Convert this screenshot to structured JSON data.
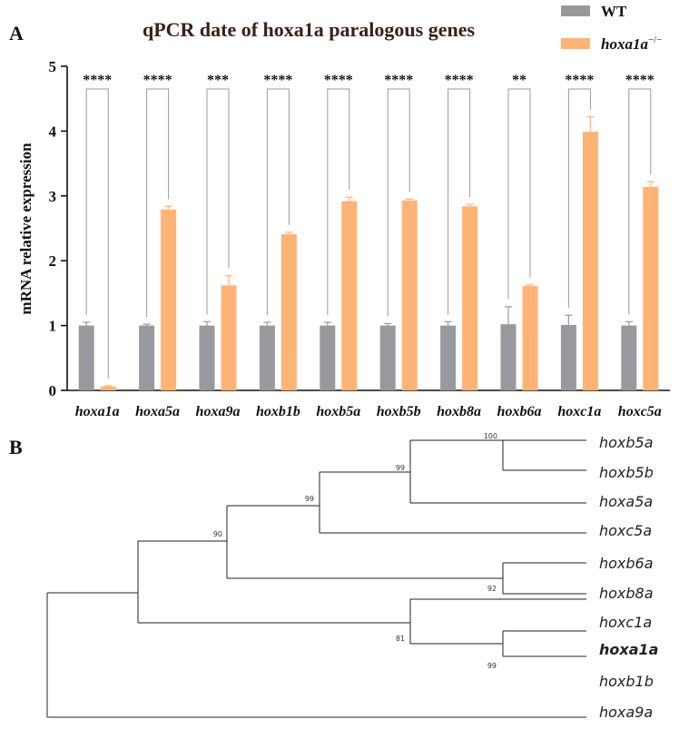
{
  "panel_a_label": "A",
  "panel_b_label": "B",
  "legend": [
    {
      "label": "WT",
      "italic": false,
      "color": "#98999e"
    },
    {
      "label": "hoxa1a",
      "sup": "−/−",
      "italic": true,
      "color": "#ffb375"
    }
  ],
  "chart_data": {
    "type": "bar",
    "title": "qPCR date of hoxa1a paralogous genes",
    "xlabel": "",
    "ylabel": "mRNA relative expression",
    "ylim": [
      0,
      5
    ],
    "yticks": [
      0,
      1,
      2,
      3,
      4,
      5
    ],
    "categories": [
      "hoxa1a",
      "hoxa5a",
      "hoxa9a",
      "hoxb1b",
      "hoxb5a",
      "hoxb5b",
      "hoxb8a",
      "hoxb6a",
      "hoxc1a",
      "hoxc5a"
    ],
    "series": [
      {
        "name": "WT",
        "color": "#98999e",
        "values": [
          1.0,
          1.0,
          1.0,
          1.0,
          1.0,
          1.0,
          1.0,
          1.02,
          1.01,
          1.0
        ],
        "errors": [
          0.05,
          0.02,
          0.06,
          0.05,
          0.05,
          0.03,
          0.06,
          0.27,
          0.15,
          0.06
        ]
      },
      {
        "name": "hoxa1a−/−",
        "color": "#ffb375",
        "values": [
          0.06,
          2.79,
          1.62,
          2.41,
          2.92,
          2.93,
          2.84,
          1.61,
          3.99,
          3.14
        ],
        "errors": [
          0.01,
          0.05,
          0.15,
          0.03,
          0.06,
          0.02,
          0.03,
          0.02,
          0.23,
          0.08
        ]
      }
    ],
    "significance": [
      "****",
      "****",
      "***",
      "****",
      "****",
      "****",
      "****",
      "**",
      "****",
      "****"
    ],
    "grid": false,
    "legend_position": "top-right"
  },
  "tree": {
    "leaves": [
      {
        "name": "hoxb5a",
        "bold": false
      },
      {
        "name": "hoxb5b",
        "bold": false
      },
      {
        "name": "hoxa5a",
        "bold": false
      },
      {
        "name": "hoxc5a",
        "bold": false
      },
      {
        "name": "hoxb6a",
        "bold": false
      },
      {
        "name": "hoxb8a",
        "bold": false
      },
      {
        "name": "hoxc1a",
        "bold": false
      },
      {
        "name": "hoxa1a",
        "bold": true
      },
      {
        "name": "hoxb1b",
        "bold": false
      },
      {
        "name": "hoxa9a",
        "bold": false
      }
    ],
    "bootstrap_values": [
      "100",
      "99",
      "99",
      "90",
      "92",
      "81",
      "99"
    ]
  }
}
